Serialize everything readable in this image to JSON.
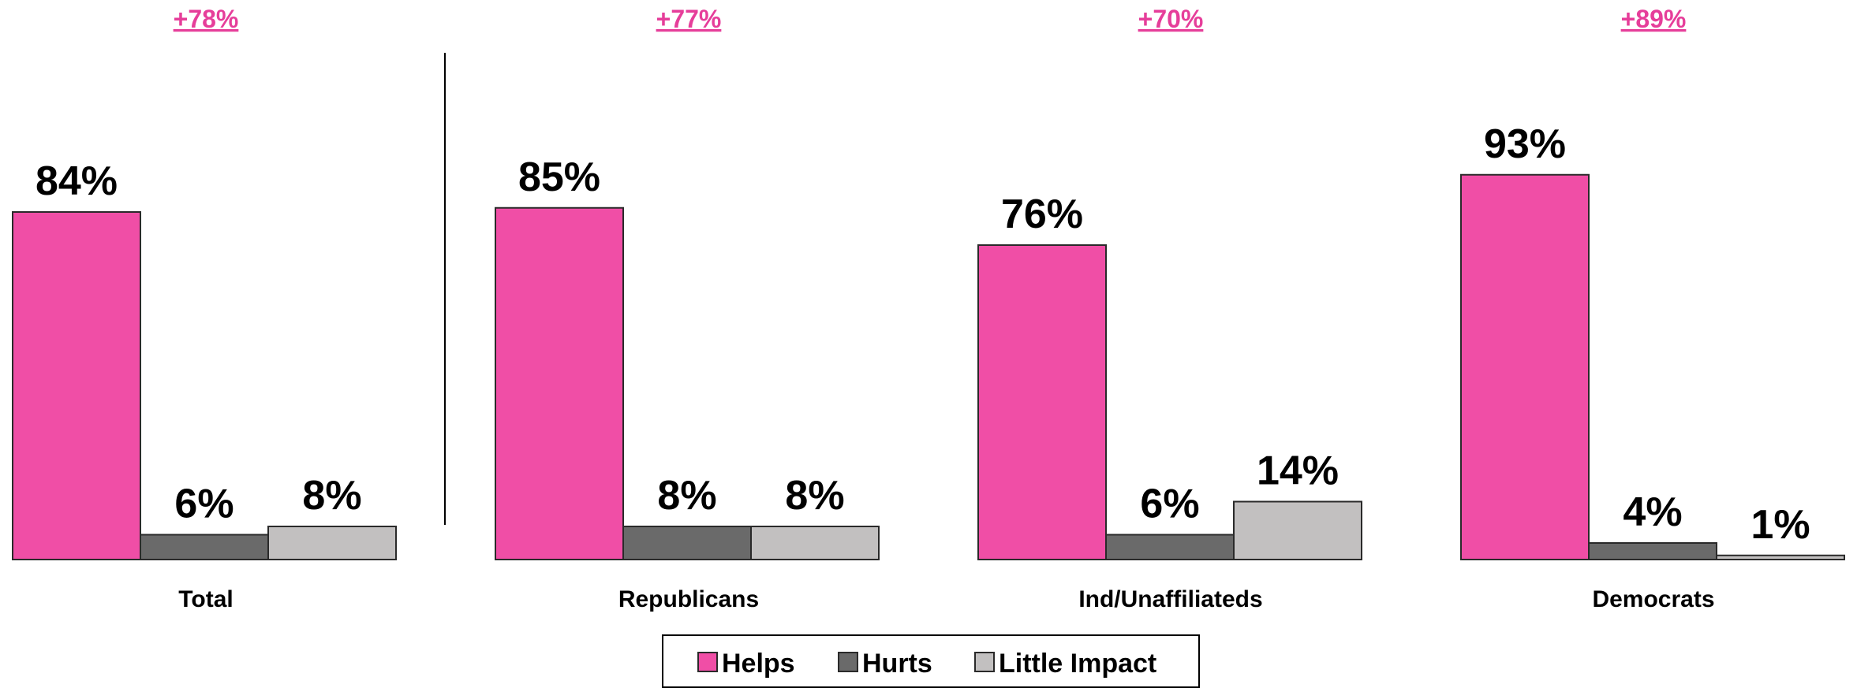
{
  "chart_data": {
    "type": "bar",
    "categories": [
      "Total",
      "Republicans",
      "Ind/Unaffiliateds",
      "Democrats"
    ],
    "net_labels": [
      "+78%",
      "+77%",
      "+70%",
      "+89%"
    ],
    "series": [
      {
        "name": "Helps",
        "color": "#F04EA6",
        "values": [
          84,
          85,
          76,
          93
        ],
        "value_labels": [
          "84%",
          "85%",
          "76%",
          "93%"
        ]
      },
      {
        "name": "Hurts",
        "color": "#6A6A6A",
        "values": [
          6,
          8,
          6,
          4
        ],
        "value_labels": [
          "6%",
          "8%",
          "6%",
          "4%"
        ]
      },
      {
        "name": "Little Impact",
        "color": "#C2C0C0",
        "values": [
          8,
          8,
          14,
          1
        ],
        "value_labels": [
          "8%",
          "8%",
          "14%",
          "1%"
        ]
      }
    ],
    "ylim": [
      0,
      100
    ],
    "grid": false,
    "legend_position": "bottom-center",
    "divider_after_category": "Total",
    "net_label_color": "#E63E9A"
  }
}
